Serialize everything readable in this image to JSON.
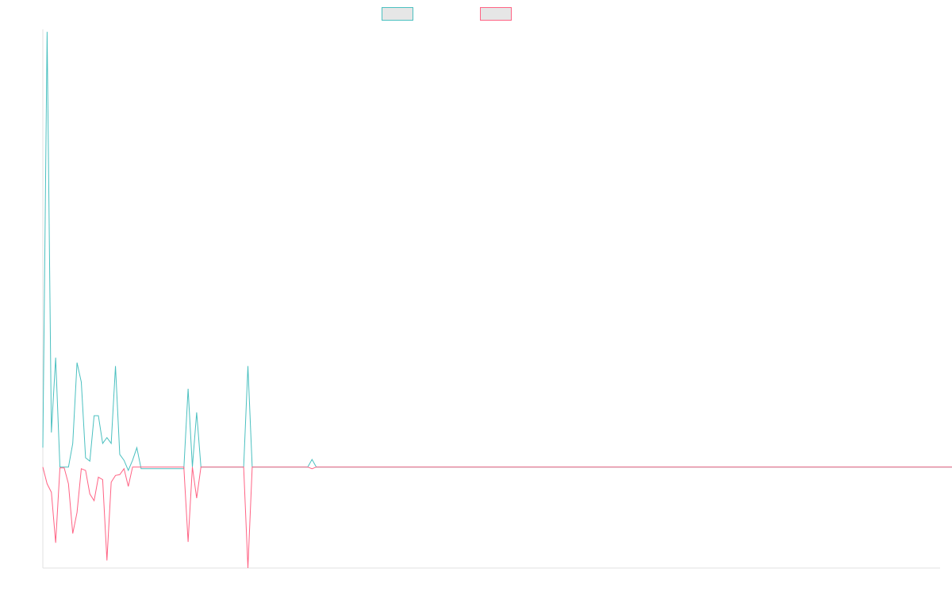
{
  "chart_data": {
    "type": "line",
    "title": "",
    "xlabel": "",
    "ylabel": "",
    "grid": false,
    "legend_placement": "top-center",
    "x_count": 211,
    "ylim": [
      -12,
      52
    ],
    "series": [
      {
        "color": "#4bc0c0",
        "swatch_fill": "#e6e6e6",
        "values": [
          2.3,
          51.7,
          4.1,
          13,
          0,
          0,
          0,
          2.8,
          12.4,
          10.1,
          1.1,
          0.7,
          6.1,
          6.1,
          2.8,
          3.5,
          2.8,
          12,
          1.5,
          0.8,
          -0.4,
          0.8,
          2.3,
          -0.2,
          -0.2,
          -0.2,
          -0.2,
          -0.2,
          -0.2,
          -0.2,
          -0.2,
          -0.2,
          -0.2,
          -0.2,
          9.3,
          0,
          6.5,
          0,
          0,
          0,
          0,
          0,
          0,
          0,
          0,
          0,
          0,
          0,
          12,
          0,
          0,
          0,
          0,
          0,
          0,
          0,
          0,
          0,
          0,
          0,
          0,
          0,
          0,
          0.9,
          0,
          0,
          0,
          0,
          0,
          0,
          0,
          0,
          0,
          0,
          0,
          0,
          0,
          0,
          0,
          0,
          0,
          0,
          0,
          0,
          0,
          0,
          0,
          0,
          0,
          0,
          0,
          0,
          0,
          0,
          0,
          0,
          0,
          0,
          0,
          0,
          0,
          0,
          0,
          0,
          0,
          0,
          0,
          0,
          0,
          0,
          0,
          0,
          0,
          0,
          0,
          0,
          0,
          0,
          0,
          0,
          0,
          0,
          0,
          0,
          0,
          0,
          0,
          0,
          0,
          0,
          0,
          0,
          0,
          0,
          0,
          0,
          0,
          0,
          0,
          0,
          0,
          0,
          0,
          0,
          0,
          0,
          0,
          0,
          0,
          0,
          0,
          0,
          0,
          0,
          0,
          0,
          0,
          0,
          0,
          0,
          0,
          0,
          0,
          0,
          0,
          0,
          0,
          0,
          0,
          0,
          0,
          0,
          0,
          0,
          0,
          0,
          0,
          0,
          0,
          0,
          0,
          0,
          0,
          0,
          0,
          0,
          0,
          0,
          0,
          0,
          0,
          0,
          0,
          0,
          0,
          0,
          0,
          0,
          0,
          0,
          0,
          0,
          0,
          0,
          0,
          0,
          0,
          0,
          0,
          0,
          0,
          0,
          0,
          0,
          0,
          0,
          0,
          0,
          0
        ]
      },
      {
        "color": "#ff6384",
        "swatch_fill": "#e6e6e6",
        "values": [
          0,
          -2,
          -3,
          -9,
          -0.1,
          -0.1,
          -2,
          -7.9,
          -5.4,
          -0.2,
          -0.4,
          -3.2,
          -4,
          -1.2,
          -1.5,
          -11.1,
          -1.8,
          -1,
          -0.9,
          -0.2,
          -2.3,
          0,
          0,
          0,
          0,
          0,
          0,
          0,
          0,
          0,
          0,
          0,
          0,
          0,
          -8.9,
          0,
          -3.7,
          0,
          0,
          0,
          0,
          0,
          0,
          0,
          0,
          0,
          0,
          0,
          -12,
          0,
          0,
          0,
          0,
          0,
          0,
          0,
          0,
          0,
          0,
          0,
          0,
          0,
          0,
          -0.2,
          0,
          0,
          0,
          0,
          0,
          0,
          0,
          0,
          0,
          0,
          0,
          0,
          0,
          0,
          0,
          0,
          0,
          0,
          0,
          0,
          0,
          0,
          0,
          0,
          0,
          0,
          0,
          0,
          0,
          0,
          0,
          0,
          0,
          0,
          0,
          0,
          0,
          0,
          0,
          0,
          0,
          0,
          0,
          0,
          0,
          0,
          0,
          0,
          0,
          0,
          0,
          0,
          0,
          0,
          0,
          0,
          0,
          0,
          0,
          0,
          0,
          0,
          0,
          0,
          0,
          0,
          0,
          0,
          0,
          0,
          0,
          0,
          0,
          0,
          0,
          0,
          0,
          0,
          0,
          0,
          0,
          0,
          0,
          0,
          0,
          0,
          0,
          0,
          0,
          0,
          0,
          0,
          0,
          0,
          0,
          0,
          0,
          0,
          0,
          0,
          0,
          0,
          0,
          0,
          0,
          0,
          0,
          0,
          0,
          0,
          0,
          0,
          0,
          0,
          0,
          0,
          0,
          0,
          0,
          0,
          0,
          0,
          0,
          0,
          0,
          0,
          0,
          0,
          0,
          0,
          0,
          0,
          0,
          0,
          0,
          0,
          0,
          0,
          0,
          0,
          0,
          0,
          0,
          0,
          0,
          0,
          0,
          0,
          0,
          0,
          0,
          0,
          0,
          0,
          0,
          0,
          0,
          0,
          0,
          0,
          0
        ]
      }
    ],
    "axis_color": "#e0e0e0"
  }
}
